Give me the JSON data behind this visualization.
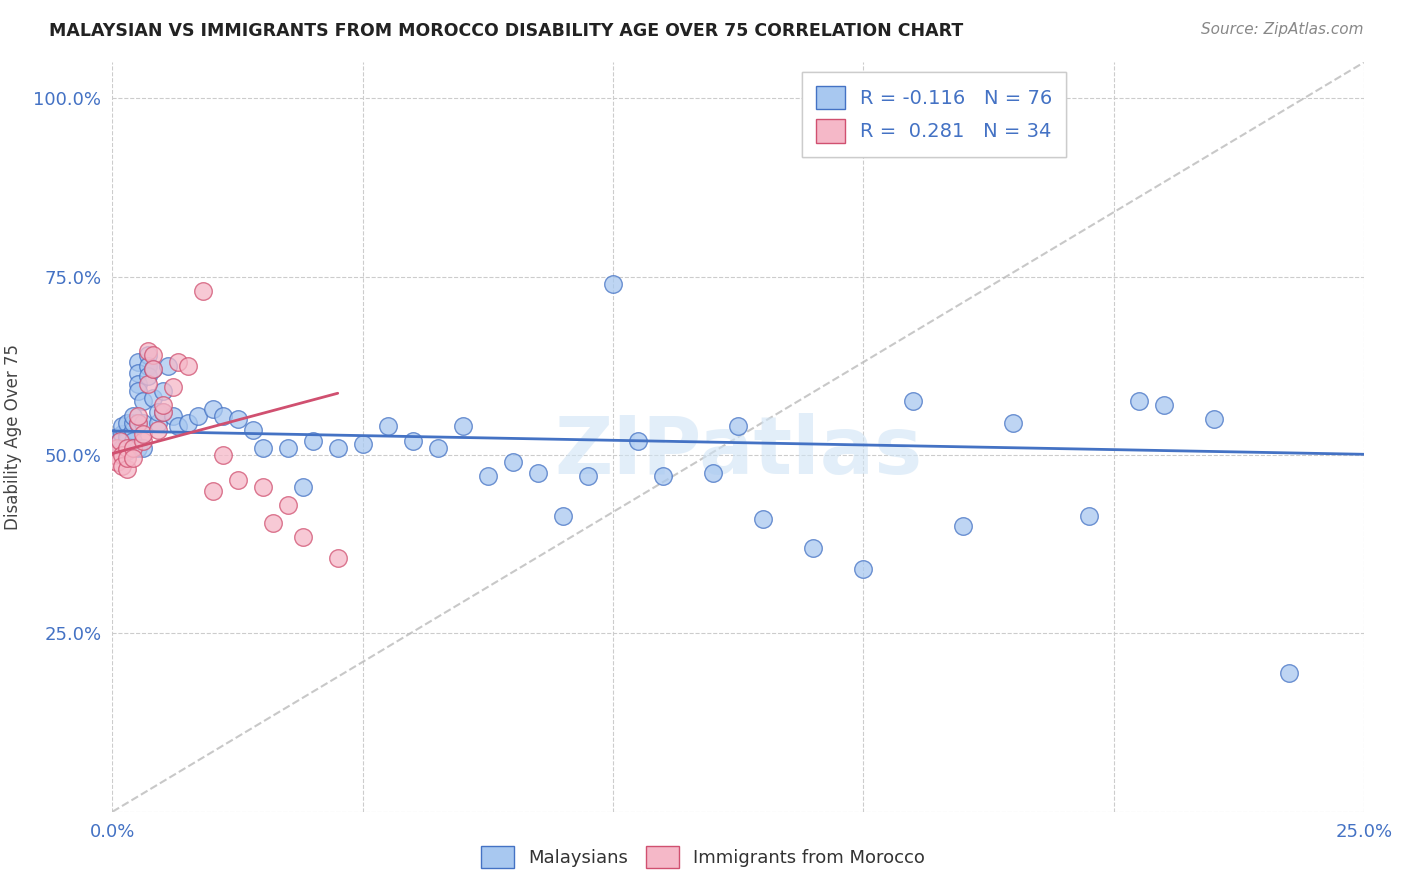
{
  "title": "MALAYSIAN VS IMMIGRANTS FROM MOROCCO DISABILITY AGE OVER 75 CORRELATION CHART",
  "source": "Source: ZipAtlas.com",
  "ylabel": "Disability Age Over 75",
  "blue_color": "#a8c8f0",
  "pink_color": "#f5b8c8",
  "blue_line_color": "#4472c4",
  "pink_line_color": "#d05070",
  "grid_color": "#cccccc",
  "background_color": "#ffffff",
  "watermark": "ZIPatlas",
  "blue_R": -0.116,
  "blue_N": 76,
  "pink_R": 0.281,
  "pink_N": 34,
  "blue_intercept": 0.53,
  "blue_slope": -0.38,
  "pink_intercept": 0.435,
  "pink_slope": 5.8,
  "grey_line_x": [
    0.0,
    0.25
  ],
  "grey_line_y": [
    0.0,
    1.05
  ],
  "blue_x": [
    0.0005,
    0.001,
    0.001,
    0.0015,
    0.002,
    0.002,
    0.002,
    0.003,
    0.003,
    0.003,
    0.003,
    0.003,
    0.004,
    0.004,
    0.004,
    0.004,
    0.004,
    0.004,
    0.005,
    0.005,
    0.005,
    0.005,
    0.005,
    0.005,
    0.006,
    0.006,
    0.006,
    0.007,
    0.007,
    0.007,
    0.008,
    0.008,
    0.009,
    0.009,
    0.01,
    0.01,
    0.011,
    0.012,
    0.013,
    0.015,
    0.017,
    0.02,
    0.022,
    0.025,
    0.028,
    0.03,
    0.035,
    0.038,
    0.04,
    0.045,
    0.05,
    0.055,
    0.06,
    0.065,
    0.07,
    0.075,
    0.08,
    0.085,
    0.09,
    0.095,
    0.1,
    0.105,
    0.11,
    0.12,
    0.125,
    0.13,
    0.14,
    0.15,
    0.16,
    0.17,
    0.18,
    0.195,
    0.205,
    0.21,
    0.22,
    0.235
  ],
  "blue_y": [
    0.52,
    0.515,
    0.525,
    0.52,
    0.53,
    0.51,
    0.54,
    0.52,
    0.505,
    0.545,
    0.51,
    0.525,
    0.51,
    0.535,
    0.52,
    0.545,
    0.555,
    0.51,
    0.63,
    0.615,
    0.6,
    0.59,
    0.51,
    0.545,
    0.51,
    0.545,
    0.575,
    0.64,
    0.625,
    0.61,
    0.62,
    0.58,
    0.545,
    0.56,
    0.56,
    0.59,
    0.625,
    0.555,
    0.54,
    0.545,
    0.555,
    0.565,
    0.555,
    0.55,
    0.535,
    0.51,
    0.51,
    0.455,
    0.52,
    0.51,
    0.515,
    0.54,
    0.52,
    0.51,
    0.54,
    0.47,
    0.49,
    0.475,
    0.415,
    0.47,
    0.74,
    0.52,
    0.47,
    0.475,
    0.54,
    0.41,
    0.37,
    0.34,
    0.575,
    0.4,
    0.545,
    0.415,
    0.575,
    0.57,
    0.55,
    0.195
  ],
  "pink_x": [
    0.0005,
    0.001,
    0.001,
    0.0015,
    0.002,
    0.002,
    0.003,
    0.003,
    0.003,
    0.004,
    0.004,
    0.005,
    0.005,
    0.006,
    0.006,
    0.007,
    0.007,
    0.008,
    0.008,
    0.009,
    0.01,
    0.01,
    0.012,
    0.013,
    0.015,
    0.018,
    0.02,
    0.022,
    0.025,
    0.03,
    0.032,
    0.035,
    0.038,
    0.045
  ],
  "pink_y": [
    0.5,
    0.51,
    0.49,
    0.52,
    0.5,
    0.485,
    0.48,
    0.51,
    0.495,
    0.51,
    0.495,
    0.545,
    0.555,
    0.52,
    0.53,
    0.6,
    0.645,
    0.64,
    0.62,
    0.535,
    0.56,
    0.57,
    0.595,
    0.63,
    0.625,
    0.73,
    0.45,
    0.5,
    0.465,
    0.455,
    0.405,
    0.43,
    0.385,
    0.355
  ]
}
